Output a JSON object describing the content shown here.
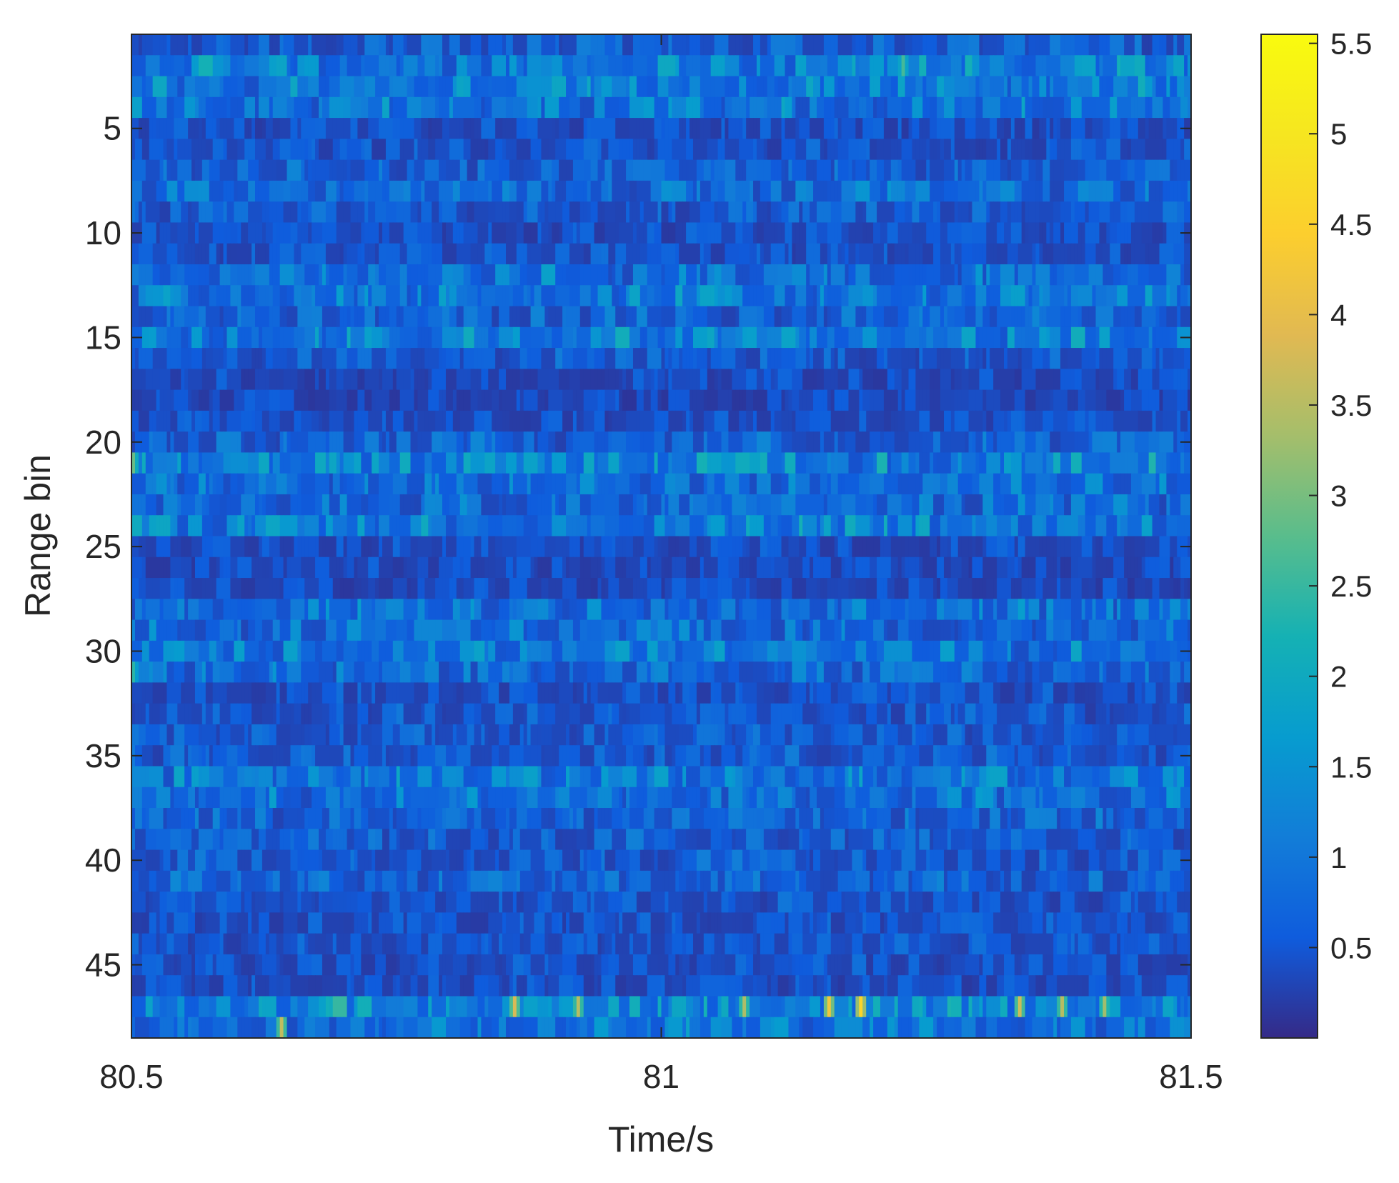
{
  "chart_data": {
    "type": "heatmap",
    "title": "",
    "xlabel": "Time/s",
    "ylabel": "Range bin",
    "xlim": [
      80.5,
      81.5
    ],
    "ylim": [
      0.5,
      48.5
    ],
    "y_reversed": true,
    "x_ticks": [
      "80.5",
      "81",
      "81.5"
    ],
    "x_tick_values": [
      80.5,
      81,
      81.5
    ],
    "y_ticks": [
      "5",
      "10",
      "15",
      "20",
      "25",
      "30",
      "35",
      "40",
      "45"
    ],
    "y_tick_values": [
      5,
      10,
      15,
      20,
      25,
      30,
      35,
      40,
      45
    ],
    "range_bins": 48,
    "colormap": "parula",
    "colorbar": {
      "ticks": [
        "0.5",
        "1",
        "1.5",
        "2",
        "2.5",
        "3",
        "3.5",
        "4",
        "4.5",
        "5",
        "5.5"
      ],
      "tick_values": [
        0.5,
        1,
        1.5,
        2,
        2.5,
        3,
        3.5,
        4,
        4.5,
        5,
        5.5
      ],
      "lim": [
        0.0,
        5.55
      ]
    },
    "row_mean_intensity": [
      0.65,
      1.2,
      1.15,
      1.05,
      0.45,
      0.5,
      0.7,
      0.85,
      0.6,
      0.45,
      0.5,
      0.95,
      1.05,
      0.7,
      1.15,
      0.6,
      0.4,
      0.35,
      0.45,
      0.7,
      1.25,
      0.95,
      0.85,
      1.2,
      0.45,
      0.4,
      0.4,
      0.95,
      0.85,
      1.05,
      0.85,
      0.5,
      0.55,
      0.6,
      0.6,
      1.05,
      0.95,
      0.75,
      0.65,
      0.65,
      0.75,
      0.55,
      0.5,
      0.55,
      0.5,
      0.45,
      1.35,
      1.0
    ],
    "peaks": [
      {
        "time": 80.64,
        "bin": 48,
        "value": 3.6
      },
      {
        "time": 80.86,
        "bin": 47,
        "value": 3.8
      },
      {
        "time": 80.92,
        "bin": 47,
        "value": 3.5
      },
      {
        "time": 81.08,
        "bin": 47,
        "value": 3.4
      },
      {
        "time": 81.16,
        "bin": 47,
        "value": 4.2
      },
      {
        "time": 81.19,
        "bin": 47,
        "value": 4.6
      },
      {
        "time": 81.34,
        "bin": 47,
        "value": 3.7
      },
      {
        "time": 81.38,
        "bin": 47,
        "value": 3.5
      },
      {
        "time": 81.42,
        "bin": 47,
        "value": 3.3
      },
      {
        "time": 81.23,
        "bin": 2,
        "value": 2.6
      },
      {
        "time": 80.5,
        "bin": 21,
        "value": 2.9
      },
      {
        "time": 80.5,
        "bin": 31,
        "value": 2.4
      }
    ]
  }
}
